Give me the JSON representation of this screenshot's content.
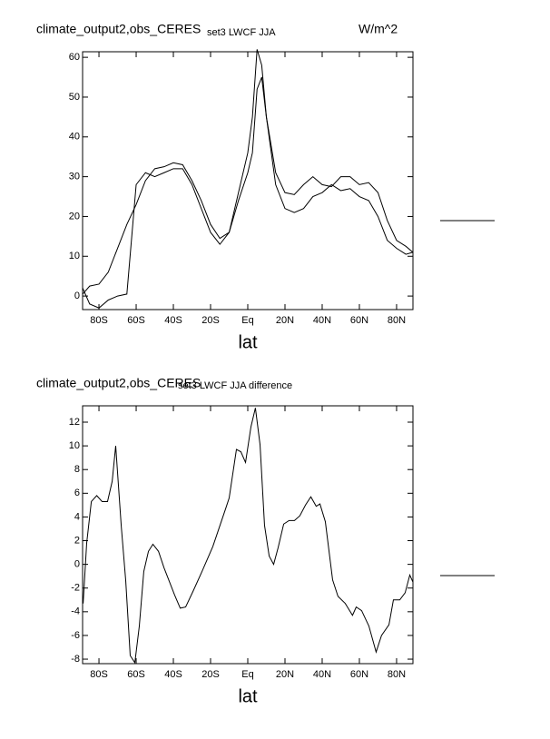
{
  "chart_data": [
    {
      "type": "line",
      "title": "climate_output2,obs_CERES",
      "subtitle": "set3 LWCF JJA",
      "units": "W/m^2",
      "x_label": "lat",
      "x": [
        -88.75,
        -85,
        -80,
        -75,
        -70,
        -65,
        -60,
        -55,
        -50,
        -45,
        -40,
        -35,
        -30,
        -25,
        -20,
        -15,
        -10,
        -5,
        0,
        2.5,
        5,
        7.5,
        10,
        15,
        20,
        25,
        30,
        35,
        40,
        45,
        50,
        55,
        60,
        65,
        70,
        75,
        80,
        85,
        88.75
      ],
      "series": [
        {
          "color": "#000000",
          "values": [
            2,
            -2,
            -3,
            -1,
            0,
            0.5,
            28,
            31,
            30,
            31,
            32,
            32,
            28,
            22,
            16,
            13,
            16,
            26,
            36,
            45,
            62,
            58,
            45,
            28,
            22,
            21,
            22,
            25,
            26,
            28,
            26.5,
            27,
            25,
            24,
            20,
            14,
            12,
            10.5,
            11
          ]
        },
        {
          "color": "#000000",
          "values": [
            0.5,
            2.5,
            3,
            6,
            12,
            18,
            23,
            29,
            32,
            32.5,
            33.5,
            33,
            29,
            24,
            18,
            14.5,
            16,
            24,
            31,
            36,
            52,
            55,
            45,
            31,
            26,
            25.5,
            28,
            30,
            28,
            27.5,
            30,
            30,
            28,
            28.5,
            26,
            19,
            14,
            12.5,
            11
          ]
        }
      ],
      "xlim": [
        -88.8,
        88.8
      ],
      "ylim": [
        -3.4,
        61.4
      ],
      "xticks": [
        {
          "value": -80,
          "label": "80S"
        },
        {
          "value": -60,
          "label": "60S"
        },
        {
          "value": -40,
          "label": "40S"
        },
        {
          "value": -20,
          "label": "20S"
        },
        {
          "value": 0,
          "label": "Eq"
        },
        {
          "value": 20,
          "label": "20N"
        },
        {
          "value": 40,
          "label": "40N"
        },
        {
          "value": 60,
          "label": "60N"
        },
        {
          "value": 80,
          "label": "80N"
        }
      ],
      "yticks": [
        0,
        10,
        20,
        30,
        40,
        50,
        60
      ]
    },
    {
      "type": "line",
      "title": "climate_output2,obs_CERES",
      "subtitle": "set3 LWCF JJA difference",
      "x_label": "lat",
      "x": [
        -88.5,
        -86.6,
        -84.1,
        -81.2,
        -78.3,
        -75.4,
        -72.9,
        -71,
        -68,
        -65.6,
        -63.2,
        -60.7,
        -58.3,
        -55.9,
        -53.4,
        -51,
        -48,
        -45,
        -39.3,
        -36.3,
        -33.4,
        -29.5,
        -24.6,
        -18.8,
        -11.9,
        -10,
        -6.1,
        -3.7,
        -1.2,
        1.7,
        4.1,
        6.6,
        9,
        11.5,
        13.9,
        16.3,
        19.3,
        22.2,
        25.1,
        28,
        31,
        33.9,
        36.8,
        38.8,
        41.7,
        45.6,
        48.5,
        52.4,
        56.3,
        58.3,
        61.2,
        65.1,
        69,
        71.9,
        75.9,
        78.3,
        81.7,
        84.6,
        87.1,
        88.8
      ],
      "series": [
        {
          "color": "#000000",
          "values": [
            -3.3,
            1.8,
            5.3,
            5.8,
            5.3,
            5.3,
            7,
            10,
            3.2,
            -1.4,
            -7.7,
            -8.3,
            -5.2,
            -0.6,
            1.1,
            1.7,
            1.1,
            -0.3,
            -2.6,
            -3.7,
            -3.6,
            -2.3,
            -0.6,
            1.5,
            4.7,
            5.6,
            9.7,
            9.5,
            8.6,
            11.6,
            13.2,
            10.1,
            3.3,
            0.7,
            0,
            1.4,
            3.4,
            3.7,
            3.7,
            4.1,
            5,
            5.7,
            4.9,
            5.1,
            3.6,
            -1.3,
            -2.7,
            -3.3,
            -4.3,
            -3.6,
            -3.9,
            -5.2,
            -7.4,
            -6,
            -5.1,
            -3,
            -3,
            -2.4,
            -0.9,
            -1.5
          ]
        }
      ],
      "xlim": [
        -88.8,
        88.8
      ],
      "ylim": [
        -8.38,
        13.38
      ],
      "xticks": [
        {
          "value": -80,
          "label": "80S"
        },
        {
          "value": -60,
          "label": "60S"
        },
        {
          "value": -40,
          "label": "40S"
        },
        {
          "value": -20,
          "label": "20S"
        },
        {
          "value": 0,
          "label": "Eq"
        },
        {
          "value": 20,
          "label": "20N"
        },
        {
          "value": 40,
          "label": "40N"
        },
        {
          "value": 60,
          "label": "60N"
        },
        {
          "value": 80,
          "label": "80N"
        }
      ],
      "yticks": [
        -8,
        -6,
        -4,
        -2,
        0,
        2,
        4,
        6,
        8,
        10,
        12
      ]
    }
  ]
}
